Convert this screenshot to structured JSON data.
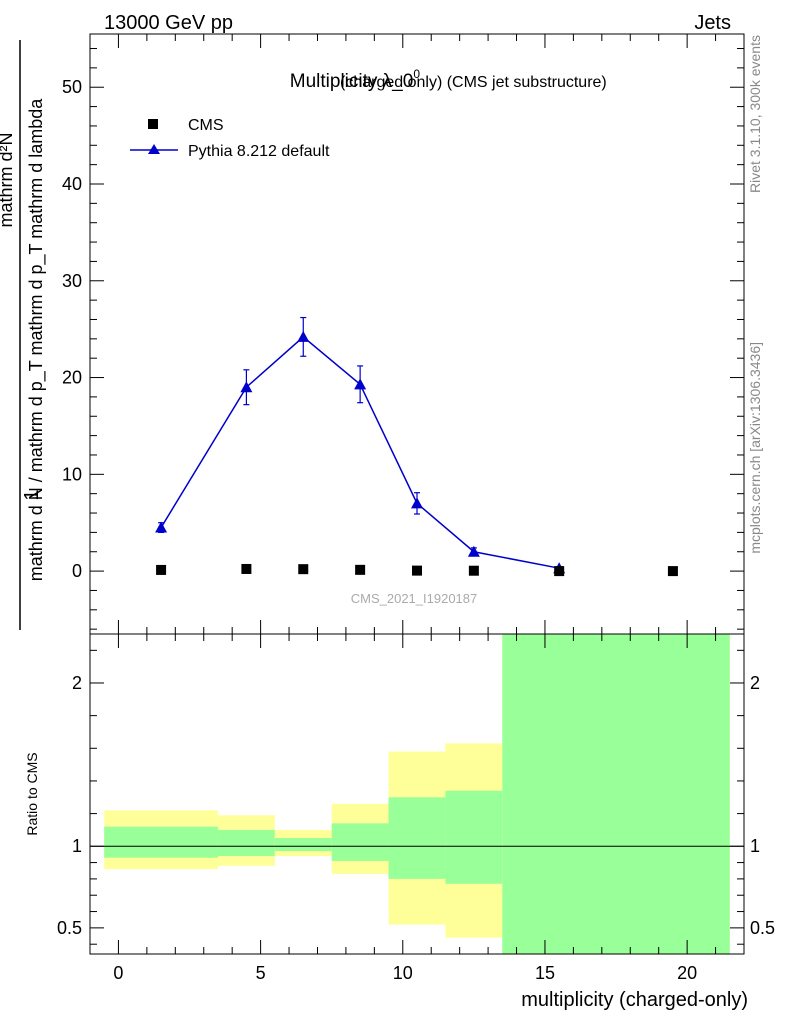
{
  "header": {
    "left": "13000 GeV pp",
    "right": "Jets"
  },
  "side_text": {
    "top": "Rivet 3.1.10,  300k events",
    "bottom": "mcplots.cern.ch [arXiv:1306.3436]"
  },
  "chart_data": [
    {
      "type": "scatter",
      "title": "Multiplicity λ_0",
      "title_sup": "0",
      "title_suffix": "(charged only) (CMS jet substructure)",
      "analysis_label": "CMS_2021_I1920187",
      "ylabel_numerator": "1",
      "ylabel_denominator": "mathrm d N / mathrm d p_T mathrm d p_T mathrm d lambda",
      "ylabel_top": "mathrm d²N",
      "xlim": [
        -1,
        22
      ],
      "ylim": [
        -6.5,
        55.5
      ],
      "yticks": [
        0,
        10,
        20,
        30,
        40,
        50
      ],
      "yticklabels": [
        "0",
        "10",
        "20",
        "30",
        "40",
        "50"
      ],
      "legend": [
        "CMS",
        "Pythia 8.212 default"
      ],
      "series": [
        {
          "name": "CMS",
          "marker": "square",
          "color": "#000000",
          "x": [
            1.5,
            4.5,
            6.5,
            8.5,
            10.5,
            12.5,
            15.5,
            19.5
          ],
          "y": [
            0.12,
            0.22,
            0.2,
            0.13,
            0.05,
            0.04,
            0.0,
            0.0
          ]
        },
        {
          "name": "Pythia 8.212 default",
          "marker": "triangle",
          "color": "#0000cc",
          "x": [
            1.5,
            4.5,
            6.5,
            8.5,
            10.5,
            12.5,
            15.5
          ],
          "y": [
            4.5,
            19.0,
            24.2,
            19.3,
            7.0,
            2.0,
            0.3
          ],
          "err": [
            0.5,
            1.8,
            2.0,
            1.9,
            1.1,
            0.4,
            0.1
          ]
        }
      ]
    },
    {
      "type": "area",
      "ylabel": "Ratio to CMS",
      "xlabel": "multiplicity (charged-only)",
      "xlim": [
        -1,
        22
      ],
      "ylim": [
        0.34,
        2.3
      ],
      "xticks": [
        0,
        5,
        10,
        15,
        20
      ],
      "xticklabels": [
        "0",
        "5",
        "10",
        "15",
        "20"
      ],
      "yticks": [
        0.5,
        1,
        2
      ],
      "yticklabels": [
        "0.5",
        "1",
        "2"
      ],
      "reference": 1.0,
      "bands": [
        {
          "x0": -0.5,
          "x1": 3.5,
          "y_lo": 0.86,
          "y_hi": 1.22,
          "g_lo": 0.93,
          "g_hi": 1.12
        },
        {
          "x0": 3.5,
          "x1": 5.5,
          "y_lo": 0.88,
          "y_hi": 1.19,
          "g_lo": 0.94,
          "g_hi": 1.1
        },
        {
          "x0": 5.5,
          "x1": 7.5,
          "y_lo": 0.94,
          "y_hi": 1.1,
          "g_lo": 0.97,
          "g_hi": 1.05
        },
        {
          "x0": 7.5,
          "x1": 9.5,
          "y_lo": 0.83,
          "y_hi": 1.26,
          "g_lo": 0.91,
          "g_hi": 1.14
        },
        {
          "x0": 9.5,
          "x1": 11.5,
          "y_lo": 0.52,
          "y_hi": 1.58,
          "g_lo": 0.8,
          "g_hi": 1.3
        },
        {
          "x0": 11.5,
          "x1": 13.5,
          "y_lo": 0.44,
          "y_hi": 1.63,
          "g_lo": 0.77,
          "g_hi": 1.34
        },
        {
          "x0": 13.5,
          "x1": 21.5,
          "y_lo": 0.34,
          "y_hi": 2.3,
          "g_lo": 0.34,
          "g_hi": 2.3
        }
      ],
      "colors": {
        "yellow": "#ffff99",
        "green": "#99ff99"
      }
    }
  ]
}
